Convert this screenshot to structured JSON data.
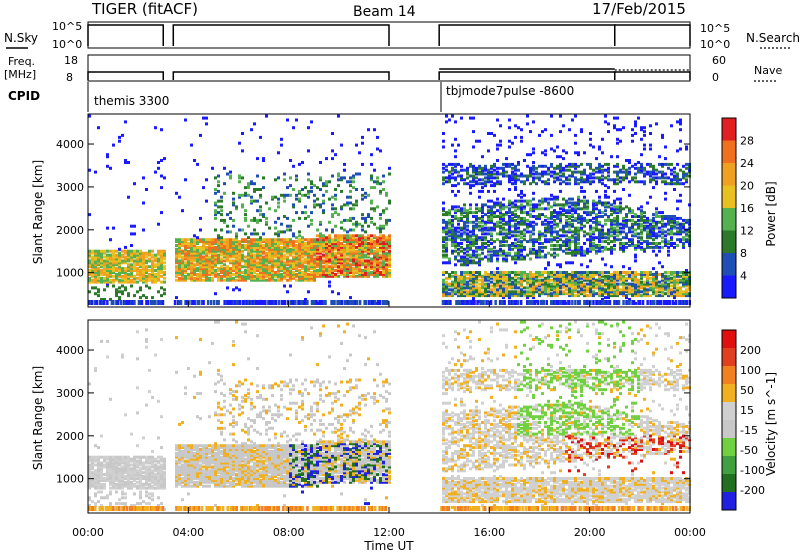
{
  "header": {
    "station": "TIGER (fitACF)",
    "beam": "Beam 14",
    "date": "17/Feb/2015"
  },
  "status_panels": {
    "nsky_label": "N.Sky",
    "nsky_ticks": [
      "10^5",
      "10^0"
    ],
    "nsearch_label": "N.Search",
    "nsearch_ticks": [
      "10^5",
      "10^0"
    ],
    "freq_label_1": "Freq.",
    "freq_label_2": "[MHz]",
    "freq_ticks": [
      "18",
      "8"
    ],
    "nave_label": "Nave",
    "nave_ticks": [
      "60",
      "0"
    ],
    "cpid_label": "CPID",
    "cpid_modes": [
      "themis 3300",
      "tbjmode7pulse -8600"
    ]
  },
  "colors": {
    "data_gap_hours": [
      [
        3.0,
        3.4
      ],
      [
        12.0,
        14.0
      ]
    ],
    "power_scale": [
      "#1a1aff",
      "#1f4fb4",
      "#2a7a2a",
      "#55b050",
      "#e8c020",
      "#f0a020",
      "#f07020",
      "#e02020"
    ],
    "velocity_scale": [
      "#2020e0",
      "#207020",
      "#40a040",
      "#70d040",
      "#c8c8c8",
      "#d0d0d0",
      "#f0b020",
      "#f08020",
      "#e04020",
      "#e01010"
    ]
  },
  "chart_data": [
    {
      "type": "heatmap",
      "title": "Power",
      "xlabel": "Time UT",
      "ylabel": "Slant Range [km]",
      "xlim_hours": [
        0,
        24
      ],
      "ylim": [
        200,
        4700
      ],
      "x_ticks": [
        "00:00",
        "04:00",
        "08:00",
        "12:00",
        "16:00",
        "20:00",
        "00:00"
      ],
      "y_ticks": [
        1000,
        2000,
        3000,
        4000
      ],
      "colorbar_label": "Power [dB]",
      "colorbar_ticks": [
        "4",
        "8",
        "12",
        "16",
        "20",
        "24",
        "28"
      ],
      "features": [
        {
          "t_start": 0.0,
          "t_end": 3.0,
          "r_min": 700,
          "r_max": 1500,
          "level": "12-20"
        },
        {
          "t_start": 3.4,
          "t_end": 12.0,
          "r_min": 600,
          "r_max": 1700,
          "level": "12-28"
        },
        {
          "t_start": 14.0,
          "t_end": 24.0,
          "r_min": 400,
          "r_max": 3500,
          "level": "4-20"
        }
      ]
    },
    {
      "type": "heatmap",
      "title": "Velocity",
      "xlabel": "Time UT",
      "ylabel": "Slant Range [km]",
      "xlim_hours": [
        0,
        24
      ],
      "ylim": [
        200,
        4700
      ],
      "x_ticks": [
        "00:00",
        "04:00",
        "08:00",
        "12:00",
        "16:00",
        "20:00",
        "00:00"
      ],
      "y_ticks": [
        1000,
        2000,
        3000,
        4000
      ],
      "colorbar_label": "Velocity [m s^-1]",
      "colorbar_ticks": [
        "200",
        "100",
        "50",
        "15",
        "-15",
        "-50",
        "-100",
        "-200"
      ],
      "features": [
        {
          "t_start": 0.0,
          "t_end": 3.0,
          "r_min": 700,
          "r_max": 1500,
          "level": "-15..15"
        },
        {
          "t_start": 8.0,
          "t_end": 12.0,
          "r_min": 700,
          "r_max": 1800,
          "level": "50..200"
        },
        {
          "t_start": 14.0,
          "t_end": 24.0,
          "r_min": 500,
          "r_max": 3500,
          "level": "-100..100"
        }
      ]
    }
  ],
  "axis": {
    "time_label": "Time UT"
  }
}
